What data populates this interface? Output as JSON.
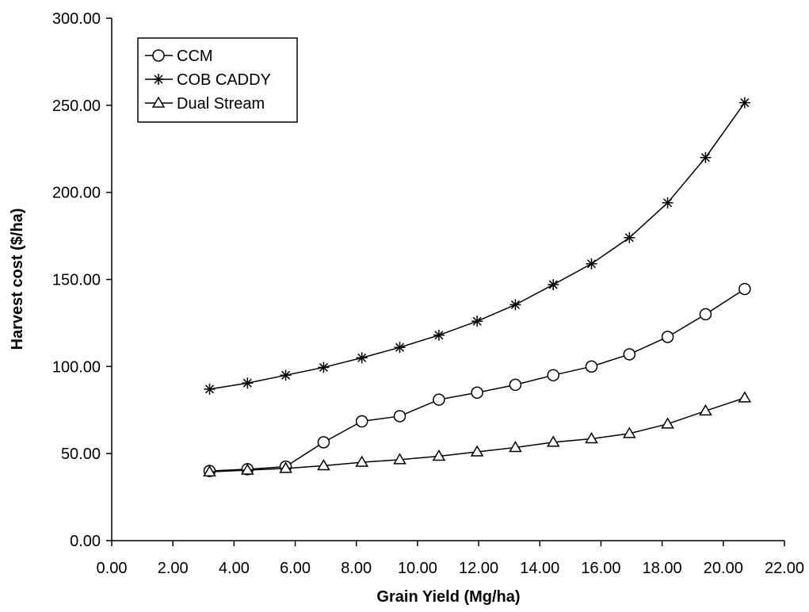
{
  "chart_data": {
    "type": "line",
    "title": "",
    "xlabel": "Grain Yield (Mg/ha)",
    "ylabel": "Harvest cost ($/ha)",
    "xlim": [
      0,
      22
    ],
    "ylim": [
      0,
      300
    ],
    "x_ticks": [
      "0.00",
      "2.00",
      "4.00",
      "6.00",
      "8.00",
      "10.00",
      "12.00",
      "14.00",
      "16.00",
      "18.00",
      "20.00",
      "22.00"
    ],
    "y_ticks": [
      "0.00",
      "50.00",
      "100.00",
      "150.00",
      "200.00",
      "250.00",
      "300.00"
    ],
    "grid": false,
    "legend_position": "top-left",
    "x": [
      3.2,
      4.44,
      5.69,
      6.93,
      8.18,
      9.42,
      10.7,
      11.95,
      13.2,
      14.44,
      15.69,
      16.93,
      18.18,
      19.42,
      20.7
    ],
    "series": [
      {
        "name": "CCM",
        "marker": "circle",
        "values": [
          40.0,
          41.0,
          42.5,
          56.5,
          68.5,
          71.5,
          81.0,
          85.0,
          89.5,
          95.0,
          100.0,
          107.0,
          117.0,
          130.0,
          144.5
        ]
      },
      {
        "name": "COB CADDY",
        "marker": "asterisk",
        "values": [
          87.0,
          90.5,
          95.0,
          99.5,
          105.0,
          111.0,
          118.0,
          126.0,
          135.5,
          147.0,
          159.0,
          174.0,
          194.0,
          220.0,
          251.5
        ]
      },
      {
        "name": "Dual Stream",
        "marker": "triangle",
        "values": [
          39.5,
          40.5,
          41.5,
          43.0,
          45.0,
          46.5,
          48.5,
          51.0,
          53.5,
          56.5,
          58.5,
          61.5,
          67.0,
          74.5,
          82.0
        ]
      }
    ]
  }
}
